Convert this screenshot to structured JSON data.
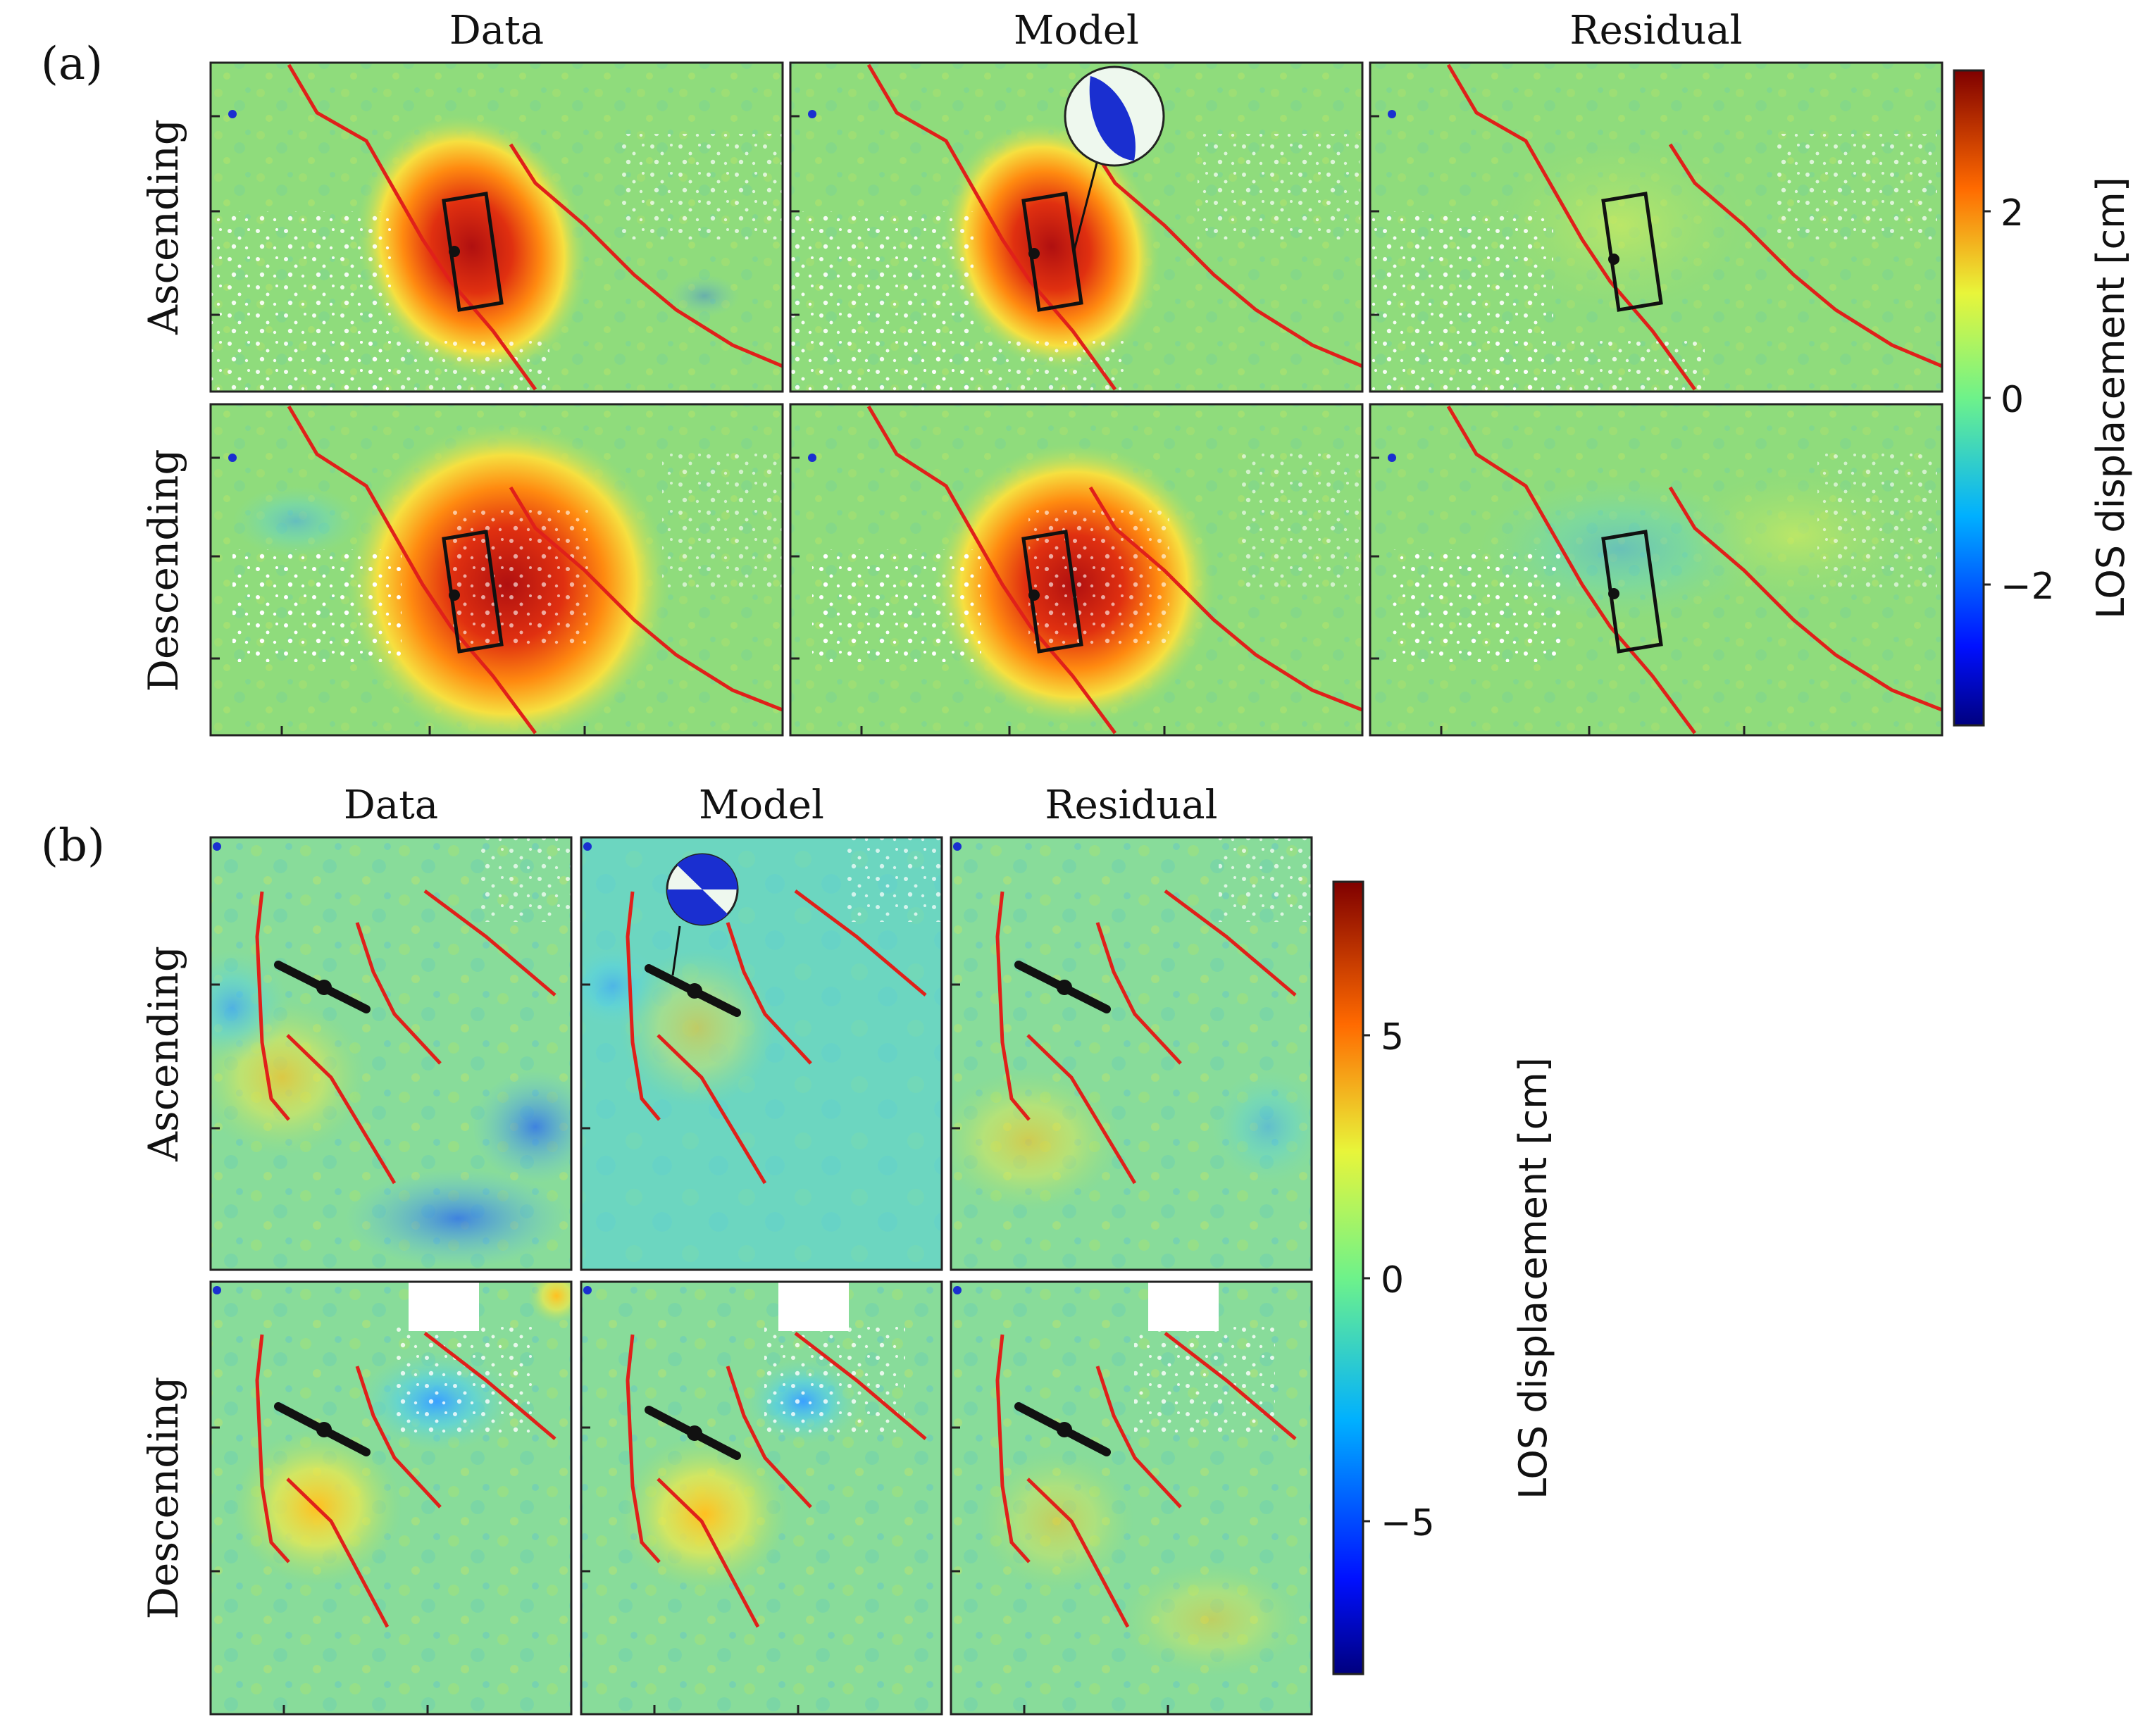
{
  "figure": {
    "panels": [
      {
        "label": "(a)",
        "columns": [
          "Data",
          "Model",
          "Residual"
        ],
        "rows": [
          "Ascending",
          "Descending"
        ],
        "colorbar": {
          "label": "LOS displacement [cm]",
          "ticks": [
            "2",
            "0",
            "−2"
          ],
          "tick_values": [
            2,
            0,
            -2
          ],
          "range": [
            -3.5,
            3.5
          ]
        },
        "legend_symbols": [
          "focal-mechanism-beachball",
          "fault-rectangle",
          "epicenter-dot",
          "red-fault-trace"
        ]
      },
      {
        "label": "(b)",
        "columns": [
          "Data",
          "Model",
          "Residual"
        ],
        "rows": [
          "Ascending",
          "Descending"
        ],
        "colorbar": {
          "label": "LOS displacement [cm]",
          "ticks": [
            "5",
            "0",
            "−5"
          ],
          "tick_values": [
            5,
            0,
            -5
          ],
          "range": [
            -8.5,
            8.5
          ]
        },
        "legend_symbols": [
          "focal-mechanism-beachball",
          "fault-line",
          "epicenter-dot",
          "red-fault-trace"
        ]
      }
    ],
    "colors": {
      "fault_trace": "#e0201a",
      "fault_outline": "#111111",
      "beachball_fill": "#1a2fd0",
      "background_zero": "#7fd27a",
      "colormap": [
        "#00007f",
        "#0030ff",
        "#00c8ff",
        "#7fff7f",
        "#ffd000",
        "#ff3000",
        "#7f0000"
      ]
    }
  }
}
